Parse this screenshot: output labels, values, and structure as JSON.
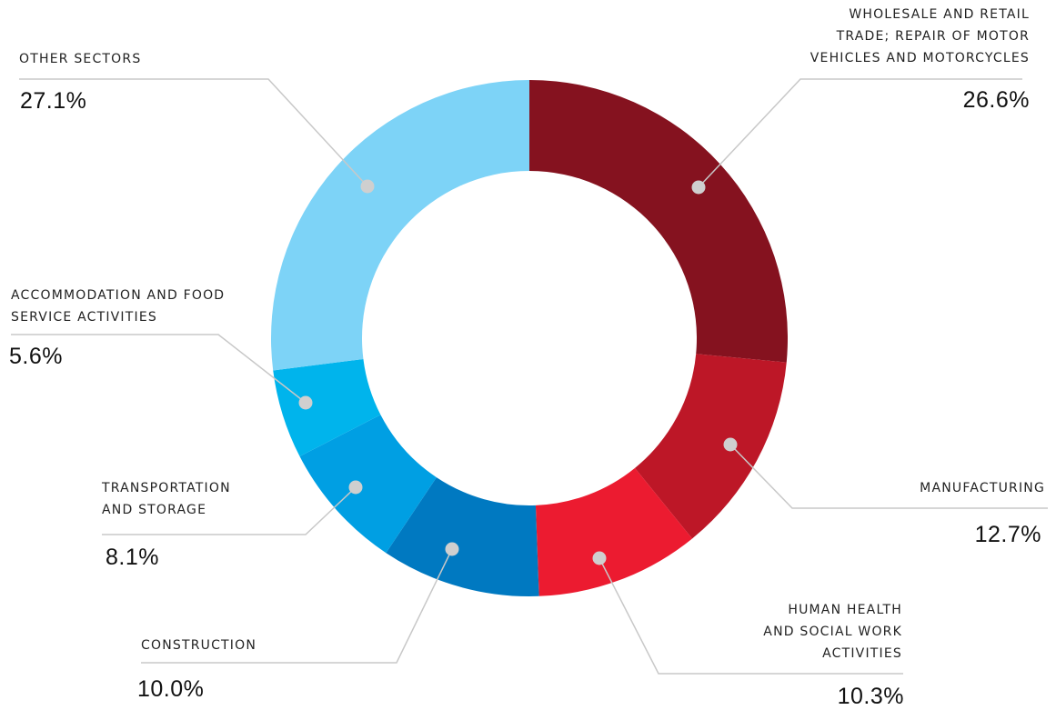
{
  "chart_data": {
    "type": "pie",
    "donut": true,
    "categories": [
      "WHOLESALE AND RETAIL TRADE; REPAIR OF MOTOR VEHICLES AND MOTORCYCLES",
      "MANUFACTURING",
      "HUMAN HEALTH AND SOCIAL WORK ACTIVITIES",
      "CONSTRUCTION",
      "TRANSPORTATION AND STORAGE",
      "ACCOMMODATION AND FOOD SERVICE ACTIVITIES",
      "OTHER SECTORS"
    ],
    "values": [
      26.6,
      12.7,
      10.3,
      10.0,
      8.1,
      5.6,
      27.1
    ],
    "value_labels": [
      "26.6%",
      "12.7%",
      "10.3%",
      "10.0%",
      "8.1%",
      "5.6%",
      "27.1%"
    ],
    "colors": [
      "#85121f",
      "#bd1727",
      "#ec1b30",
      "#0079c1",
      "#009fe3",
      "#00b4ec",
      "#7dd3f7"
    ],
    "marker_color": "#cfcfcf",
    "leader_color": "#c8c8c8",
    "legend": "none",
    "title": ""
  },
  "labels": {
    "wholesale": {
      "name": "WHOLESALE AND RETAIL\nTRADE; REPAIR OF MOTOR\nVEHICLES AND MOTORCYCLES",
      "value": "26.6%"
    },
    "manufacturing": {
      "name": "MANUFACTURING",
      "value": "12.7%"
    },
    "health": {
      "name": "HUMAN HEALTH\nAND SOCIAL WORK\nACTIVITIES",
      "value": "10.3%"
    },
    "construction": {
      "name": "CONSTRUCTION",
      "value": "10.0%"
    },
    "transport": {
      "name": "TRANSPORTATION\nAND STORAGE",
      "value": "8.1%"
    },
    "accommodation": {
      "name": "ACCOMMODATION AND FOOD\nSERVICE ACTIVITIES",
      "value": "5.6%"
    },
    "other": {
      "name": "OTHER SECTORS",
      "value": "27.1%"
    }
  }
}
